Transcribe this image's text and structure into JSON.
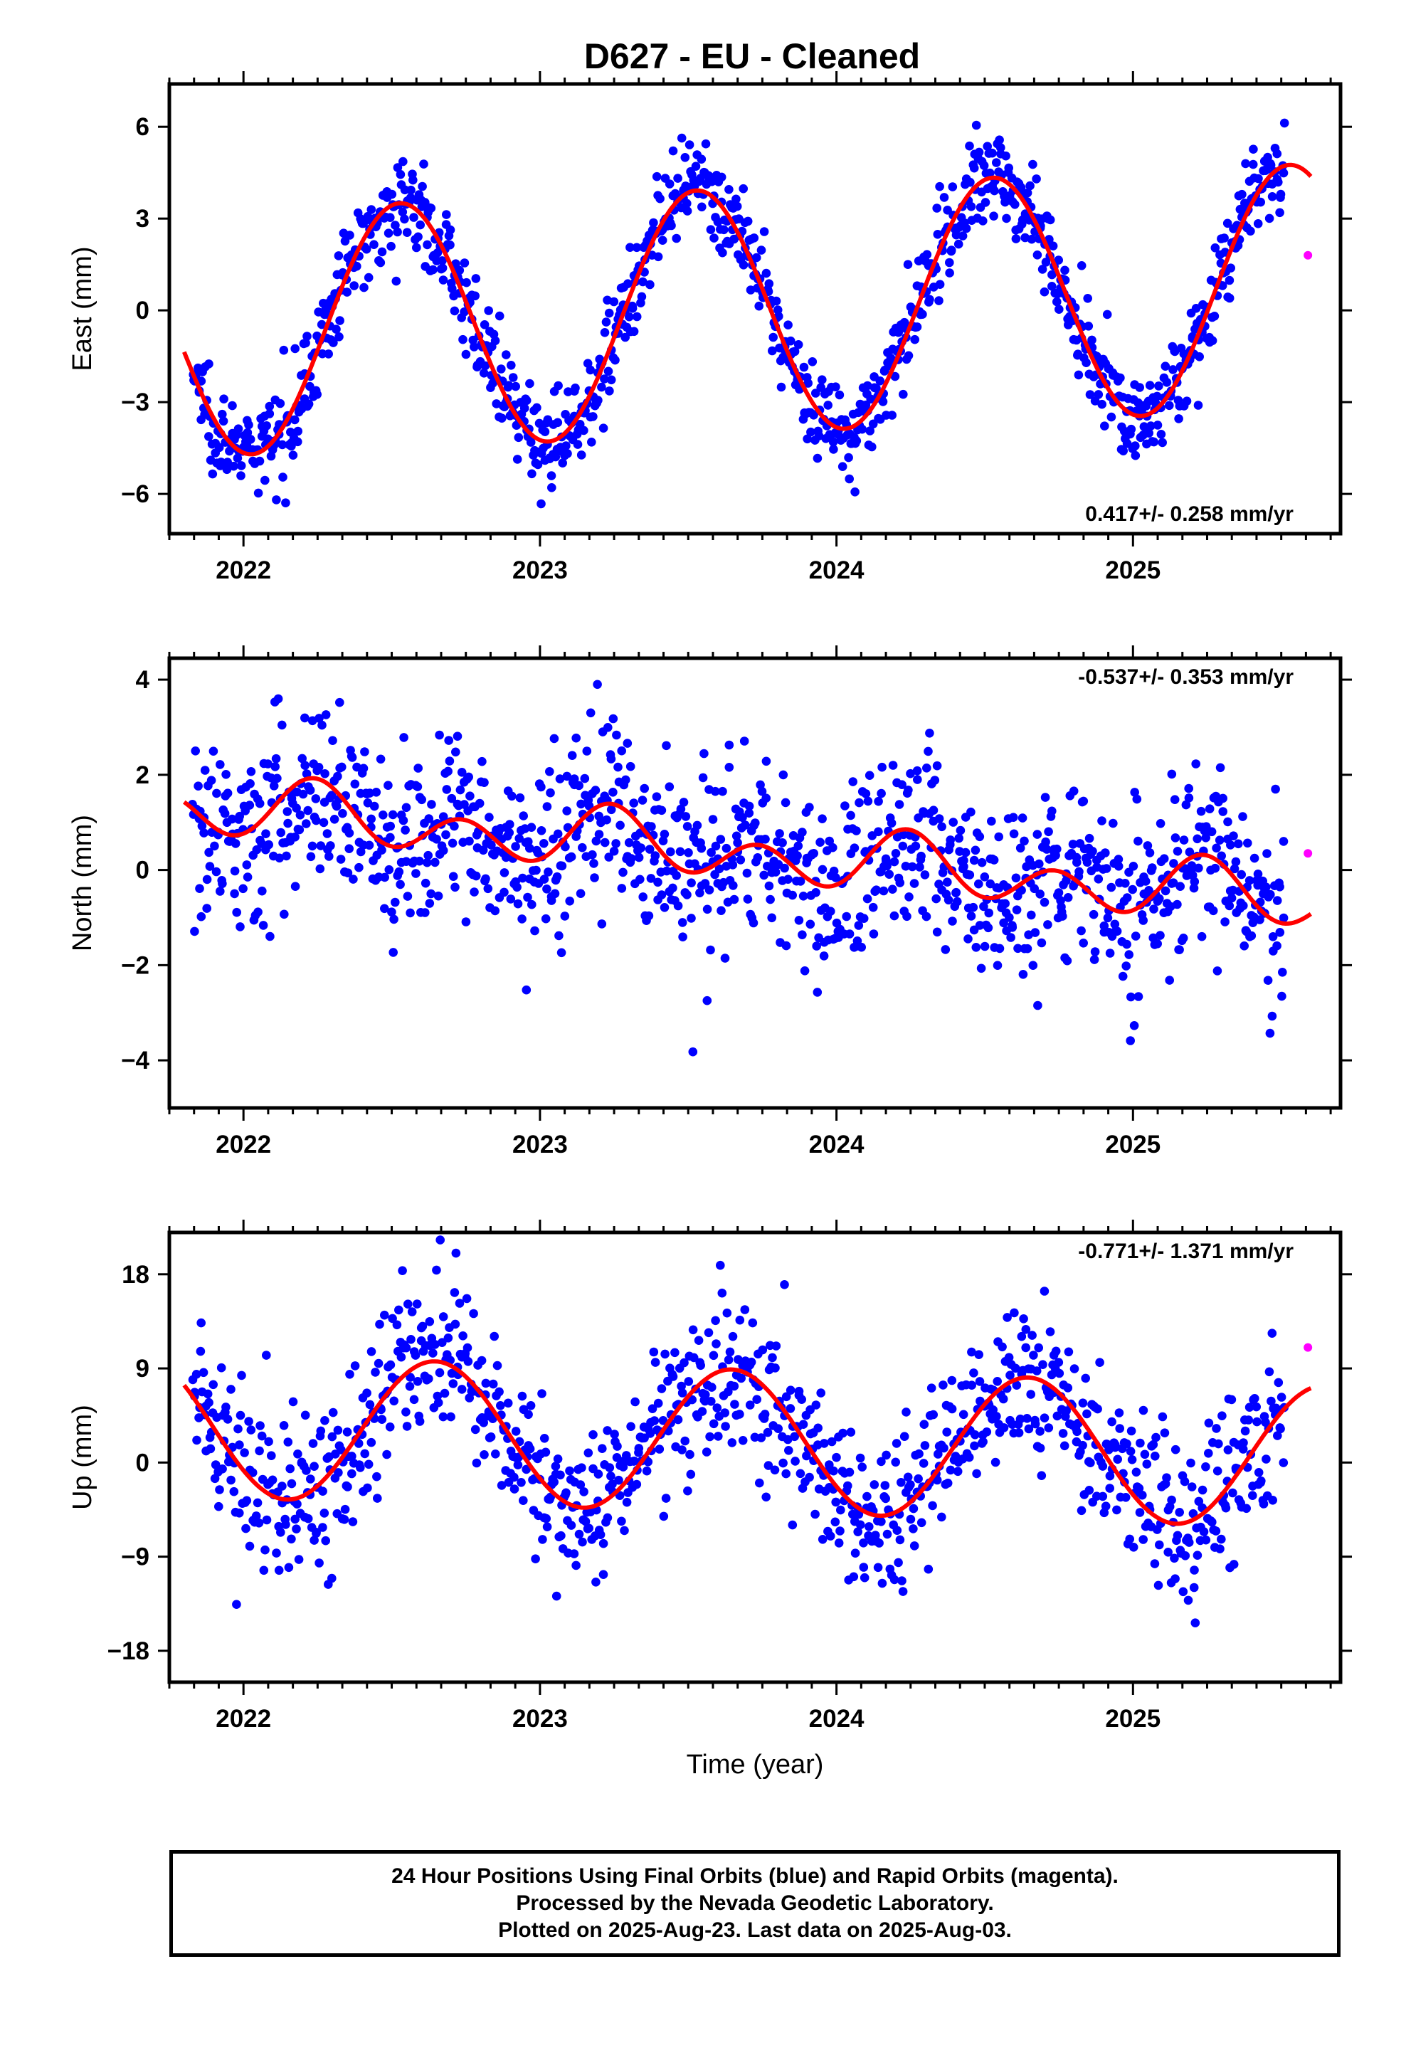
{
  "title": "D627  - EU - Cleaned",
  "footer": {
    "line1": "24 Hour Positions Using Final Orbits (blue) and Rapid Orbits (magenta).",
    "line2": "Processed by the Nevada Geodetic Laboratory.",
    "line3": "Plotted on 2025-Aug-23. Last data on 2025-Aug-03."
  },
  "colors": {
    "final": "#0000ff",
    "rapid": "#ff00ff",
    "model": "#ff0000",
    "frame": "#000000"
  },
  "chart_data": [
    {
      "type": "scatter",
      "ylabel": "East (mm)",
      "xlabel": "",
      "xlim": [
        2021.75,
        2025.7
      ],
      "ylim": [
        -7.3,
        7.4
      ],
      "xticks": [
        2022,
        2023,
        2024,
        2025
      ],
      "yticks": [
        -6,
        -3,
        0,
        3,
        6
      ],
      "rate_label": "0.417+/- 0.258 mm/yr",
      "rate_position": "bottom-right",
      "final_points": {
        "x_start": 2021.83,
        "x_end": 2025.51,
        "count": 1150,
        "model": {
          "offset": -0.3,
          "rate": 0.417,
          "annual_amp": 4.0,
          "annual_phase": -1.745,
          "semi_amp": 0,
          "semi_phase": 0
        },
        "noise_sd": 0.75
      },
      "model_curve": {
        "x_start": 2021.8,
        "x_end": 2025.6,
        "offset": -0.3,
        "rate": 0.417,
        "annual_amp": 4.0,
        "annual_phase": -1.745,
        "semi_amp": 0,
        "semi_phase": 0
      },
      "rapid_points": [
        {
          "x": 2025.59,
          "y": 1.8
        }
      ]
    },
    {
      "type": "scatter",
      "ylabel": "North (mm)",
      "xlabel": "",
      "xlim": [
        2021.75,
        2025.7
      ],
      "ylim": [
        -5.0,
        4.45
      ],
      "xticks": [
        2022,
        2023,
        2024,
        2025
      ],
      "yticks": [
        -4,
        -2,
        0,
        2,
        4
      ],
      "rate_label": "-0.537+/- 0.353 mm/yr",
      "rate_position": "top-right",
      "final_points": {
        "x_start": 2021.83,
        "x_end": 2025.51,
        "count": 1150,
        "model": {
          "offset": 0.72,
          "rate": -0.537,
          "annual_amp": 0.3,
          "annual_phase": 0.0,
          "semi_amp": 0.5,
          "semi_phase": -1.4
        },
        "noise_sd": 0.95
      },
      "model_curve": {
        "x_start": 2021.8,
        "x_end": 2025.6,
        "offset": 0.72,
        "rate": -0.537,
        "annual_amp": 0.3,
        "annual_phase": 0.0,
        "semi_amp": 0.5,
        "semi_phase": -1.4
      },
      "rapid_points": [
        {
          "x": 2025.59,
          "y": 0.35
        }
      ]
    },
    {
      "type": "scatter",
      "ylabel": "Up (mm)",
      "xlabel": "Time (year)",
      "xlim": [
        2021.75,
        2025.7
      ],
      "ylim": [
        -21,
        22
      ],
      "xticks": [
        2022,
        2023,
        2024,
        2025
      ],
      "yticks": [
        -18,
        -9,
        0,
        9,
        18
      ],
      "rate_label": "-0.771+/- 1.371 mm/yr",
      "rate_position": "top-right",
      "final_points": {
        "x_start": 2021.83,
        "x_end": 2025.51,
        "count": 1050,
        "model": {
          "offset": 2.6,
          "rate": -0.771,
          "annual_amp": 6.8,
          "annual_phase": -2.49,
          "semi_amp": 0,
          "semi_phase": 0
        },
        "noise_sd": 3.8
      },
      "model_curve": {
        "x_start": 2021.8,
        "x_end": 2025.6,
        "offset": 2.6,
        "rate": -0.771,
        "annual_amp": 6.8,
        "annual_phase": -2.49,
        "semi_amp": 0,
        "semi_phase": 0
      },
      "rapid_points": [
        {
          "x": 2025.59,
          "y": 11.0
        }
      ]
    }
  ]
}
